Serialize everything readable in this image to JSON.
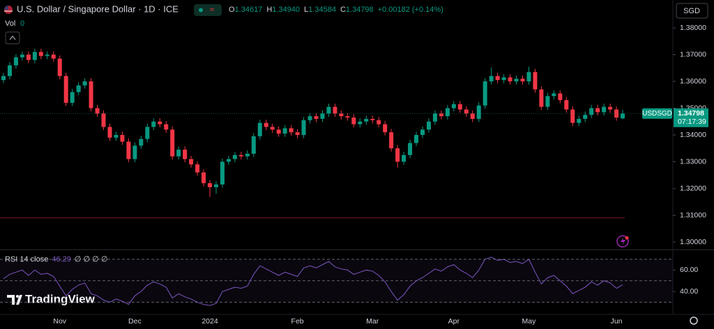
{
  "header": {
    "title": "U.S. Dollar / Singapore Dollar · 1D · ICE",
    "badge": "≈",
    "readout": [
      {
        "label": "O",
        "value": "1.34617"
      },
      {
        "label": "H",
        "value": "1.34940"
      },
      {
        "label": "L",
        "value": "1.34584"
      },
      {
        "label": "C",
        "value": "1.34798"
      }
    ],
    "change": "+0.00182 (+0.14%)",
    "volume_label": "Vol",
    "volume_value": "0",
    "currency": "SGD",
    "logo": "TradingView"
  },
  "chart_data": [
    {
      "type": "candlestick",
      "symbol": "USDSGD",
      "countdown": "07:17:39",
      "categories": [
        null,
        null,
        null,
        null,
        null,
        null,
        null,
        null,
        null,
        "Nov",
        null,
        null,
        null,
        null,
        null,
        null,
        null,
        null,
        null,
        null,
        null,
        "Dec",
        null,
        null,
        null,
        null,
        null,
        null,
        null,
        null,
        null,
        null,
        null,
        "2024",
        null,
        null,
        null,
        null,
        null,
        null,
        null,
        null,
        null,
        null,
        null,
        null,
        null,
        "Feb",
        null,
        null,
        null,
        null,
        null,
        null,
        null,
        null,
        null,
        null,
        null,
        "Mar",
        null,
        null,
        null,
        null,
        null,
        null,
        null,
        null,
        null,
        null,
        null,
        null,
        "Apr",
        null,
        null,
        null,
        null,
        null,
        null,
        null,
        null,
        null,
        null,
        null,
        "May",
        null,
        null,
        null,
        null,
        null,
        null,
        null,
        null,
        null,
        null,
        null,
        null,
        null,
        "Jun",
        null
      ],
      "open": [
        1.3605,
        1.362,
        1.366,
        1.369,
        1.37,
        1.368,
        1.371,
        1.3695,
        1.37,
        1.3685,
        1.362,
        1.352,
        1.356,
        1.3585,
        1.36,
        1.35,
        1.348,
        1.343,
        1.339,
        1.34,
        1.3375,
        1.331,
        1.336,
        1.3385,
        1.343,
        1.345,
        1.344,
        1.342,
        1.332,
        1.3345,
        1.331,
        1.329,
        1.326,
        1.322,
        1.3205,
        1.3215,
        1.33,
        1.331,
        1.3325,
        1.332,
        1.333,
        1.3395,
        1.3445,
        1.343,
        1.342,
        1.3405,
        1.3425,
        1.341,
        1.34,
        1.3455,
        1.347,
        1.346,
        1.348,
        1.3505,
        1.348,
        1.347,
        1.3465,
        1.344,
        1.345,
        1.346,
        1.3455,
        1.344,
        1.341,
        1.335,
        1.33,
        1.3325,
        1.337,
        1.34,
        1.342,
        1.345,
        1.348,
        1.347,
        1.35,
        1.3515,
        1.3495,
        1.348,
        1.346,
        1.351,
        1.36,
        1.362,
        1.3605,
        1.3615,
        1.36,
        1.361,
        1.36,
        1.3635,
        1.357,
        1.3505,
        1.3545,
        1.3555,
        1.353,
        1.3495,
        1.3445,
        1.346,
        1.3475,
        1.35,
        1.3485,
        1.3505,
        1.3495,
        1.34617
      ],
      "high": [
        1.3632,
        1.3672,
        1.3702,
        1.3712,
        1.3712,
        1.3722,
        1.3722,
        1.3712,
        1.3712,
        1.3697,
        1.3632,
        1.3572,
        1.3597,
        1.3612,
        1.3612,
        1.3512,
        1.3492,
        1.3442,
        1.3412,
        1.3412,
        1.3387,
        1.3372,
        1.3397,
        1.3442,
        1.3462,
        1.3462,
        1.3452,
        1.3432,
        1.3357,
        1.3357,
        1.3322,
        1.3302,
        1.3272,
        1.3232,
        1.3227,
        1.3312,
        1.3322,
        1.3337,
        1.3337,
        1.3342,
        1.3407,
        1.3457,
        1.3457,
        1.3442,
        1.3432,
        1.3437,
        1.3437,
        1.3422,
        1.3467,
        1.3482,
        1.3482,
        1.3492,
        1.3517,
        1.3517,
        1.3492,
        1.3482,
        1.3477,
        1.3462,
        1.3472,
        1.3472,
        1.3467,
        1.3452,
        1.3422,
        1.3362,
        1.3337,
        1.3382,
        1.3412,
        1.3432,
        1.3462,
        1.3492,
        1.3492,
        1.3512,
        1.3527,
        1.3527,
        1.3507,
        1.3492,
        1.3522,
        1.3612,
        1.3652,
        1.3632,
        1.3627,
        1.3627,
        1.3622,
        1.3622,
        1.3655,
        1.3647,
        1.3582,
        1.3557,
        1.3567,
        1.3567,
        1.3542,
        1.3507,
        1.3472,
        1.3487,
        1.3512,
        1.3512,
        1.3517,
        1.3517,
        1.3507,
        1.3494
      ],
      "low": [
        1.3593,
        1.3608,
        1.3648,
        1.3678,
        1.3668,
        1.3668,
        1.3683,
        1.3683,
        1.3673,
        1.3608,
        1.3508,
        1.3508,
        1.3548,
        1.3573,
        1.3488,
        1.3468,
        1.3418,
        1.3378,
        1.3378,
        1.3363,
        1.3298,
        1.3298,
        1.3348,
        1.3373,
        1.3418,
        1.3428,
        1.3408,
        1.3308,
        1.3308,
        1.3298,
        1.3278,
        1.3248,
        1.3208,
        1.3168,
        1.318,
        1.3203,
        1.3288,
        1.3298,
        1.3308,
        1.3308,
        1.3318,
        1.3383,
        1.3418,
        1.3408,
        1.3393,
        1.3393,
        1.3398,
        1.3388,
        1.3388,
        1.3443,
        1.3448,
        1.3448,
        1.3468,
        1.3468,
        1.3458,
        1.3453,
        1.3428,
        1.3428,
        1.3438,
        1.3443,
        1.3428,
        1.3398,
        1.3338,
        1.3278,
        1.3288,
        1.3313,
        1.3358,
        1.3388,
        1.3408,
        1.3438,
        1.3458,
        1.3458,
        1.3488,
        1.3483,
        1.3468,
        1.3448,
        1.3448,
        1.3498,
        1.3588,
        1.3593,
        1.3593,
        1.3588,
        1.3588,
        1.3588,
        1.3588,
        1.3558,
        1.3493,
        1.3493,
        1.3533,
        1.3518,
        1.3483,
        1.3433,
        1.3433,
        1.3448,
        1.3463,
        1.3473,
        1.3473,
        1.3483,
        1.3453,
        1.34584
      ],
      "close": [
        1.362,
        1.366,
        1.369,
        1.37,
        1.368,
        1.371,
        1.3695,
        1.37,
        1.3685,
        1.362,
        1.352,
        1.356,
        1.3585,
        1.36,
        1.35,
        1.348,
        1.343,
        1.339,
        1.34,
        1.3375,
        1.331,
        1.336,
        1.3385,
        1.343,
        1.345,
        1.344,
        1.342,
        1.332,
        1.3345,
        1.331,
        1.329,
        1.326,
        1.322,
        1.3205,
        1.3215,
        1.33,
        1.331,
        1.3325,
        1.332,
        1.333,
        1.3395,
        1.3445,
        1.343,
        1.342,
        1.3405,
        1.3425,
        1.341,
        1.34,
        1.3455,
        1.347,
        1.346,
        1.348,
        1.3505,
        1.348,
        1.347,
        1.3465,
        1.344,
        1.345,
        1.346,
        1.3455,
        1.344,
        1.341,
        1.335,
        1.33,
        1.3325,
        1.337,
        1.34,
        1.342,
        1.345,
        1.348,
        1.347,
        1.35,
        1.3515,
        1.3495,
        1.348,
        1.346,
        1.351,
        1.36,
        1.362,
        1.3605,
        1.3615,
        1.36,
        1.361,
        1.36,
        1.3635,
        1.357,
        1.3505,
        1.3545,
        1.3555,
        1.353,
        1.3495,
        1.3445,
        1.346,
        1.3475,
        1.35,
        1.3485,
        1.3505,
        1.3495,
        1.3465,
        1.34798
      ],
      "up_color": "#089981",
      "down_color": "#f23645",
      "grid": false,
      "hline": {
        "value": 1.3091,
        "color": "#7a1d24"
      },
      "ylim": [
        1.2974,
        1.3904
      ],
      "yticks": [
        {
          "value": 1.3,
          "label": "1.30000"
        },
        {
          "value": 1.31,
          "label": "1.31000"
        },
        {
          "value": 1.32,
          "label": "1.32000"
        },
        {
          "value": 1.33,
          "label": "1.33000"
        },
        {
          "value": 1.34,
          "label": "1.34000"
        },
        {
          "value": 1.35,
          "label": "1.35000"
        },
        {
          "value": 1.36,
          "label": "1.36000"
        },
        {
          "value": 1.37,
          "label": "1.37000"
        },
        {
          "value": 1.38,
          "label": "1.38000"
        }
      ]
    },
    {
      "type": "line",
      "title": "RSI 14 close",
      "extra": "∅ ∅ ∅ ∅",
      "color": "#7e57c2",
      "values": [
        52,
        56,
        58,
        60,
        55,
        60,
        56,
        57,
        54,
        45,
        36,
        42,
        46,
        48,
        38,
        36,
        32,
        30,
        33,
        31,
        28,
        36,
        40,
        46,
        49,
        47,
        44,
        34,
        38,
        35,
        33,
        30,
        28,
        27,
        29,
        40,
        42,
        44,
        43,
        45,
        56,
        64,
        61,
        58,
        55,
        58,
        56,
        54,
        62,
        64,
        62,
        65,
        68,
        63,
        61,
        60,
        56,
        58,
        60,
        59,
        55,
        49,
        40,
        32,
        37,
        45,
        50,
        53,
        57,
        61,
        59,
        63,
        65,
        60,
        57,
        53,
        60,
        70,
        72,
        69,
        70,
        67,
        68,
        66,
        70,
        58,
        47,
        53,
        55,
        50,
        45,
        38,
        41,
        44,
        49,
        46,
        50,
        48,
        43,
        46.29
      ],
      "levels": [
        30,
        50,
        70
      ],
      "ylim": [
        20,
        77
      ],
      "yticks": [
        {
          "value": 40,
          "label": "40.00"
        },
        {
          "value": 60,
          "label": "60.00"
        }
      ]
    }
  ]
}
